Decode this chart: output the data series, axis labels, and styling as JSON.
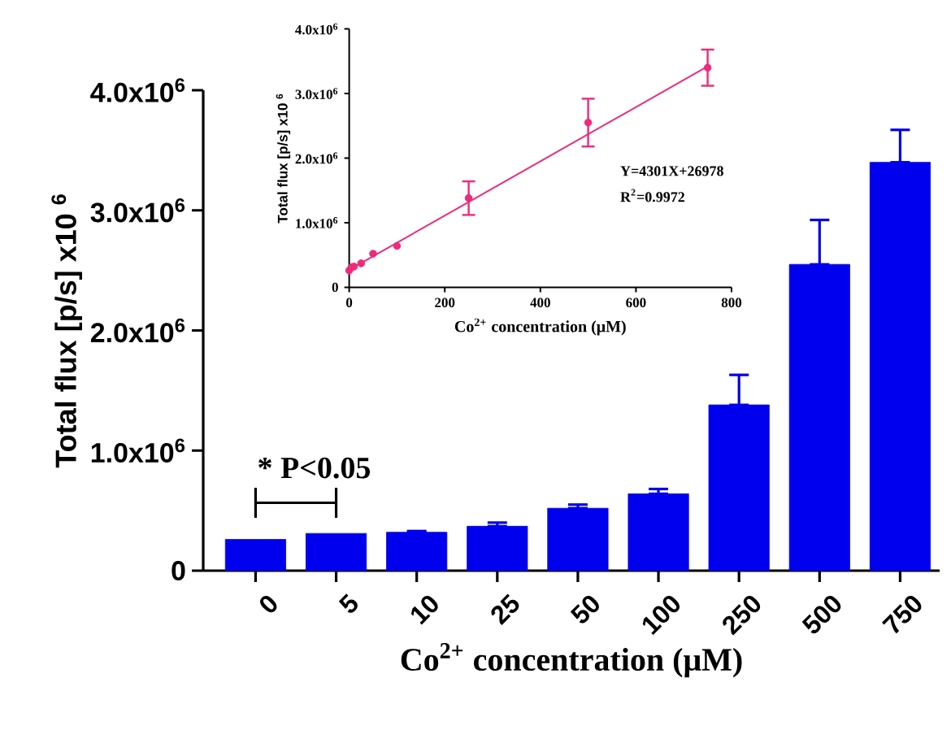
{
  "chart_data": [
    {
      "type": "bar",
      "xlabel": "Co$^{2+}$ concentration (μM)",
      "ylabel": "Total flux [p/s]   x10 $^{6}$",
      "categories": [
        "0",
        "5",
        "10",
        "25",
        "50",
        "100",
        "250",
        "500",
        "750"
      ],
      "values": [
        260000,
        310000,
        320000,
        370000,
        520000,
        640000,
        1380000,
        2550000,
        3400000
      ],
      "errors": [
        null,
        null,
        [
          320000,
          330000
        ],
        [
          370000,
          400000
        ],
        [
          520000,
          550000
        ],
        [
          640000,
          680000
        ],
        [
          1380000,
          1630000
        ],
        [
          2550000,
          2920000
        ],
        [
          3400000,
          3670000
        ]
      ],
      "color": "#0000ee",
      "ylim": [
        0,
        4000000
      ],
      "yticks": [
        0,
        {
          "value": 1000000,
          "label": "1.0x10$^{6}$"
        },
        {
          "value": 2000000,
          "label": "2.0x10$^{6}$"
        },
        {
          "value": 3000000,
          "label": "3.0x10$^{6}$"
        },
        {
          "value": 4000000,
          "label": "4.0x10$^{6}$"
        }
      ],
      "annotations": [
        "* P<0.05"
      ]
    },
    {
      "type": "scatter",
      "xlabel": "Co$^{2+}$ concentration (μM)",
      "ylabel": "Total flux [p/s]   x10 $^{6}$",
      "series": [
        {
          "color": "#ee2a7b",
          "marker": "circle",
          "x": [
            0,
            5,
            10,
            25,
            50,
            100,
            250,
            500,
            750
          ],
          "values": [
            260000,
            310000,
            320000,
            370000,
            520000,
            640000,
            1380000,
            2550000,
            3400000
          ],
          "errors": [
            null,
            null,
            null,
            null,
            null,
            null,
            260000,
            370000,
            280000
          ]
        },
        {
          "type": "line",
          "marker": "none",
          "color": "#ee2a7b",
          "x": [
            0,
            750
          ],
          "values": [
            270000,
            3420000
          ]
        }
      ],
      "xlim": [
        0,
        800
      ],
      "ylim": [
        0,
        4000000
      ],
      "xticks": [
        0,
        200,
        400,
        600,
        800
      ],
      "yticks": [
        0,
        {
          "value": 1000000,
          "label": "1.0x10$^{6}$"
        },
        {
          "value": 2000000,
          "label": "2.0x10$^{6}$"
        },
        {
          "value": 3000000,
          "label": "3.0x10$^{6}$"
        },
        {
          "value": 4000000,
          "label": "4.0x10$^{6}$"
        }
      ],
      "annotations": [
        "Y=4301X+26978",
        "R$^{2}$=0.9972"
      ]
    }
  ]
}
